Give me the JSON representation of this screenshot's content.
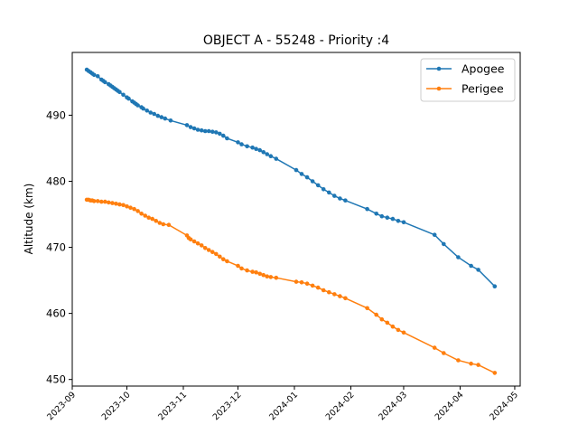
{
  "chart_data": {
    "type": "line",
    "title": "OBJECT A - 55248 - Priority :4",
    "xlabel": "",
    "ylabel": "Altitude (km)",
    "xlim": [
      "2023-09-01",
      "2024-05-04"
    ],
    "ylim": [
      449,
      499.5
    ],
    "x_ticks": [
      "2023-09",
      "2023-10",
      "2023-11",
      "2023-12",
      "2024-01",
      "2024-02",
      "2024-03",
      "2024-04",
      "2024-05"
    ],
    "y_ticks": [
      450,
      460,
      470,
      480,
      490
    ],
    "grid": false,
    "legend": {
      "position": "top-right",
      "entries": [
        "Apogee",
        "Perigee"
      ]
    },
    "colors": {
      "Apogee": "#1f77b4",
      "Perigee": "#ff7f0e"
    },
    "series": [
      {
        "name": "Apogee",
        "points": [
          [
            "2023-09-09",
            496.9
          ],
          [
            "2023-09-10",
            496.7
          ],
          [
            "2023-09-11",
            496.5
          ],
          [
            "2023-09-12",
            496.3
          ],
          [
            "2023-09-13",
            496.1
          ],
          [
            "2023-09-15",
            495.9
          ],
          [
            "2023-09-17",
            495.4
          ],
          [
            "2023-09-18",
            495.2
          ],
          [
            "2023-09-19",
            495.0
          ],
          [
            "2023-09-21",
            494.7
          ],
          [
            "2023-09-22",
            494.5
          ],
          [
            "2023-09-23",
            494.3
          ],
          [
            "2023-09-24",
            494.1
          ],
          [
            "2023-09-25",
            493.9
          ],
          [
            "2023-09-26",
            493.7
          ],
          [
            "2023-09-27",
            493.5
          ],
          [
            "2023-09-29",
            493.1
          ],
          [
            "2023-10-01",
            492.7
          ],
          [
            "2023-10-02",
            492.5
          ],
          [
            "2023-10-04",
            492.1
          ],
          [
            "2023-10-05",
            491.9
          ],
          [
            "2023-10-06",
            491.7
          ],
          [
            "2023-10-07",
            491.5
          ],
          [
            "2023-10-09",
            491.2
          ],
          [
            "2023-10-10",
            491.0
          ],
          [
            "2023-10-12",
            490.7
          ],
          [
            "2023-10-14",
            490.4
          ],
          [
            "2023-10-16",
            490.2
          ],
          [
            "2023-10-18",
            489.9
          ],
          [
            "2023-10-20",
            489.7
          ],
          [
            "2023-10-22",
            489.5
          ],
          [
            "2023-10-25",
            489.2
          ],
          [
            "2023-11-03",
            488.5
          ],
          [
            "2023-11-05",
            488.2
          ],
          [
            "2023-11-07",
            488.0
          ],
          [
            "2023-11-09",
            487.8
          ],
          [
            "2023-11-11",
            487.7
          ],
          [
            "2023-11-13",
            487.6
          ],
          [
            "2023-11-15",
            487.6
          ],
          [
            "2023-11-17",
            487.5
          ],
          [
            "2023-11-19",
            487.4
          ],
          [
            "2023-11-21",
            487.2
          ],
          [
            "2023-11-23",
            486.9
          ],
          [
            "2023-11-25",
            486.5
          ],
          [
            "2023-12-01",
            485.9
          ],
          [
            "2023-12-03",
            485.6
          ],
          [
            "2023-12-06",
            485.3
          ],
          [
            "2023-12-09",
            485.1
          ],
          [
            "2023-12-11",
            484.9
          ],
          [
            "2023-12-13",
            484.7
          ],
          [
            "2023-12-15",
            484.4
          ],
          [
            "2023-12-17",
            484.1
          ],
          [
            "2023-12-19",
            483.8
          ],
          [
            "2023-12-22",
            483.4
          ],
          [
            "2024-01-02",
            481.7
          ],
          [
            "2024-01-05",
            481.1
          ],
          [
            "2024-01-08",
            480.6
          ],
          [
            "2024-01-11",
            480.0
          ],
          [
            "2024-01-14",
            479.4
          ],
          [
            "2024-01-17",
            478.8
          ],
          [
            "2024-01-20",
            478.3
          ],
          [
            "2024-01-23",
            477.8
          ],
          [
            "2024-01-26",
            477.4
          ],
          [
            "2024-01-29",
            477.1
          ],
          [
            "2024-02-10",
            475.8
          ],
          [
            "2024-02-15",
            475.1
          ],
          [
            "2024-02-18",
            474.7
          ],
          [
            "2024-02-21",
            474.5
          ],
          [
            "2024-02-24",
            474.3
          ],
          [
            "2024-02-27",
            474.0
          ],
          [
            "2024-03-01",
            473.8
          ],
          [
            "2024-03-18",
            471.9
          ],
          [
            "2024-03-23",
            470.5
          ],
          [
            "2024-03-31",
            468.5
          ],
          [
            "2024-04-07",
            467.2
          ],
          [
            "2024-04-11",
            466.6
          ],
          [
            "2024-04-20",
            464.1
          ]
        ]
      },
      {
        "name": "Perigee",
        "points": [
          [
            "2023-09-09",
            477.2
          ],
          [
            "2023-09-10",
            477.2
          ],
          [
            "2023-09-11",
            477.1
          ],
          [
            "2023-09-12",
            477.1
          ],
          [
            "2023-09-13",
            477.0
          ],
          [
            "2023-09-15",
            477.0
          ],
          [
            "2023-09-17",
            476.9
          ],
          [
            "2023-09-19",
            476.9
          ],
          [
            "2023-09-21",
            476.8
          ],
          [
            "2023-09-23",
            476.7
          ],
          [
            "2023-09-25",
            476.6
          ],
          [
            "2023-09-27",
            476.5
          ],
          [
            "2023-09-29",
            476.4
          ],
          [
            "2023-10-01",
            476.2
          ],
          [
            "2023-10-03",
            476.0
          ],
          [
            "2023-10-05",
            475.8
          ],
          [
            "2023-10-07",
            475.5
          ],
          [
            "2023-10-09",
            475.1
          ],
          [
            "2023-10-11",
            474.8
          ],
          [
            "2023-10-13",
            474.5
          ],
          [
            "2023-10-15",
            474.3
          ],
          [
            "2023-10-17",
            474.0
          ],
          [
            "2023-10-19",
            473.7
          ],
          [
            "2023-10-21",
            473.5
          ],
          [
            "2023-10-24",
            473.4
          ],
          [
            "2023-11-03",
            471.8
          ],
          [
            "2023-11-04",
            471.4
          ],
          [
            "2023-11-05",
            471.2
          ],
          [
            "2023-11-07",
            470.9
          ],
          [
            "2023-11-09",
            470.6
          ],
          [
            "2023-11-11",
            470.3
          ],
          [
            "2023-11-13",
            469.9
          ],
          [
            "2023-11-15",
            469.6
          ],
          [
            "2023-11-17",
            469.3
          ],
          [
            "2023-11-19",
            469.0
          ],
          [
            "2023-11-21",
            468.6
          ],
          [
            "2023-11-23",
            468.2
          ],
          [
            "2023-11-25",
            467.9
          ],
          [
            "2023-12-01",
            467.2
          ],
          [
            "2023-12-03",
            466.8
          ],
          [
            "2023-12-06",
            466.5
          ],
          [
            "2023-12-09",
            466.3
          ],
          [
            "2023-12-11",
            466.2
          ],
          [
            "2023-12-13",
            466.0
          ],
          [
            "2023-12-15",
            465.8
          ],
          [
            "2023-12-17",
            465.6
          ],
          [
            "2023-12-19",
            465.5
          ],
          [
            "2023-12-22",
            465.4
          ],
          [
            "2024-01-02",
            464.8
          ],
          [
            "2024-01-05",
            464.7
          ],
          [
            "2024-01-08",
            464.5
          ],
          [
            "2024-01-11",
            464.2
          ],
          [
            "2024-01-14",
            463.9
          ],
          [
            "2024-01-17",
            463.5
          ],
          [
            "2024-01-20",
            463.2
          ],
          [
            "2024-01-23",
            462.9
          ],
          [
            "2024-01-26",
            462.6
          ],
          [
            "2024-01-29",
            462.3
          ],
          [
            "2024-02-10",
            460.8
          ],
          [
            "2024-02-15",
            459.8
          ],
          [
            "2024-02-18",
            459.1
          ],
          [
            "2024-02-21",
            458.6
          ],
          [
            "2024-02-24",
            458.0
          ],
          [
            "2024-02-27",
            457.5
          ],
          [
            "2024-03-01",
            457.1
          ],
          [
            "2024-03-18",
            454.8
          ],
          [
            "2024-03-23",
            454.0
          ],
          [
            "2024-03-31",
            452.9
          ],
          [
            "2024-04-07",
            452.4
          ],
          [
            "2024-04-11",
            452.2
          ],
          [
            "2024-04-20",
            451.0
          ]
        ]
      }
    ]
  }
}
